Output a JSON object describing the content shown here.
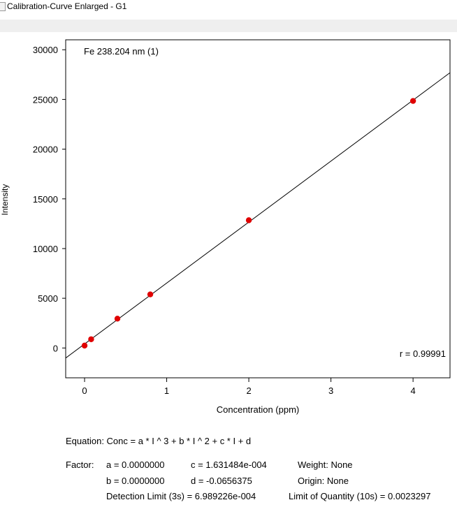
{
  "window": {
    "title": "Calibration-Curve Enlarged - G1"
  },
  "chart_data": {
    "type": "scatter",
    "title": "Fe 238.204 nm (1)",
    "xlabel": "Concentration (ppm)",
    "ylabel": "Intensity",
    "xlim": [
      -0.23,
      4.45
    ],
    "ylim": [
      -3000,
      31000
    ],
    "xticks": [
      0,
      1,
      2,
      3,
      4
    ],
    "yticks": [
      0,
      5000,
      10000,
      15000,
      20000,
      25000,
      30000
    ],
    "grid": false,
    "points": [
      {
        "x": 0,
        "y": 240
      },
      {
        "x": 0.08,
        "y": 880
      },
      {
        "x": 0.4,
        "y": 2950
      },
      {
        "x": 0.8,
        "y": 5390
      },
      {
        "x": 2,
        "y": 12850
      },
      {
        "x": 4,
        "y": 24850
      }
    ],
    "fit_line": {
      "x": [
        -0.23,
        4.45
      ],
      "y": [
        -1010,
        27690
      ]
    },
    "annotation": "r = 0.99991",
    "point_color": "#e00000",
    "line_color": "#000000"
  },
  "results": {
    "equation": "Equation: Conc = a * I ^ 3 + b * I ^ 2 + c * I + d",
    "factor_label": "Factor:",
    "a": "a = 0.0000000",
    "b": "b = 0.0000000",
    "c": "c = 1.631484e-004",
    "d": "d = -0.0656375",
    "weight": "Weight: None",
    "origin": "Origin:   None",
    "detection_limit": "Detection Limit (3s) = 6.989226e-004",
    "limit_of_quantity": "Limit of Quantity (10s) = 0.0023297"
  }
}
